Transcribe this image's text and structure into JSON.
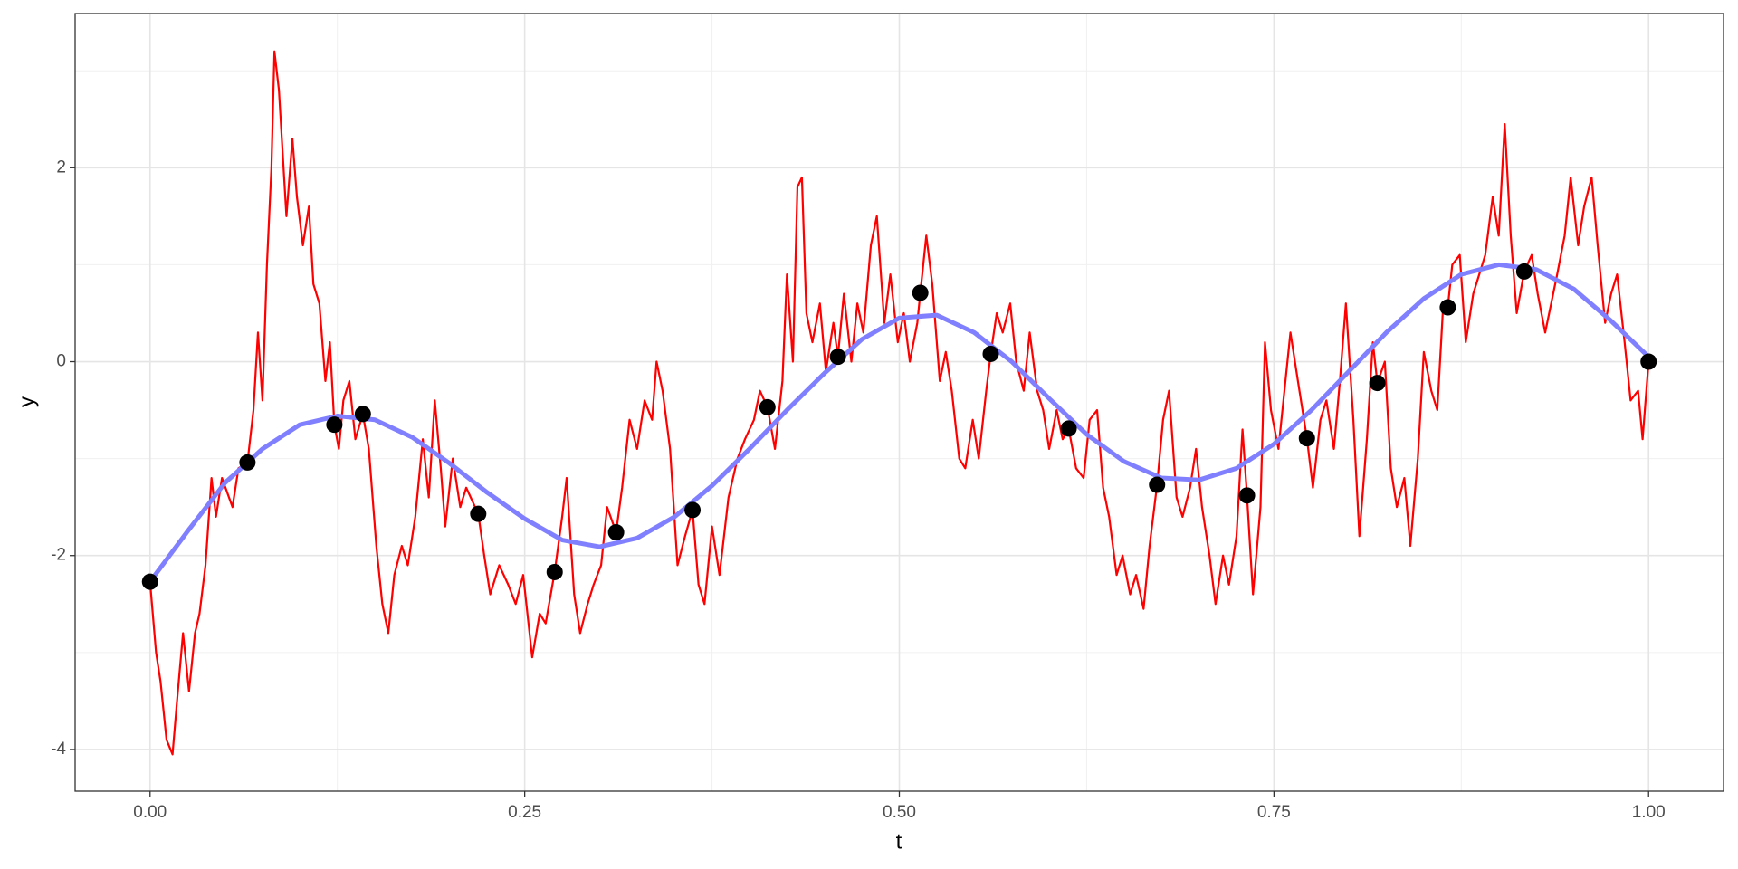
{
  "chart_data": {
    "type": "line",
    "x_label": "t",
    "y_label": "y",
    "xlim": [
      -0.05,
      1.05
    ],
    "ylim": [
      -4.43,
      3.59
    ],
    "xticks": [
      {
        "value": 0,
        "label": "0.00"
      },
      {
        "value": 0.25,
        "label": "0.25"
      },
      {
        "value": 0.5,
        "label": "0.50"
      },
      {
        "value": 0.75,
        "label": "0.75"
      },
      {
        "value": 1,
        "label": "1.00"
      }
    ],
    "yticks": [
      -4,
      -2,
      0,
      2
    ],
    "x_minor_grid": [
      0.125,
      0.375,
      0.625,
      0.875
    ],
    "y_minor_grid": [
      -3,
      -1,
      1,
      3
    ],
    "grid": true,
    "series": [
      {
        "type": "line",
        "color": "#ff0000",
        "width": 2.2,
        "x": [
          0,
          0.004,
          0.007,
          0.011,
          0.015,
          0.018,
          0.022,
          0.026,
          0.03,
          0.033,
          0.037,
          0.041,
          0.044,
          0.048,
          0.055,
          0.059,
          0.065,
          0.069,
          0.072,
          0.075,
          0.078,
          0.081,
          0.083,
          0.086,
          0.091,
          0.095,
          0.098,
          0.102,
          0.106,
          0.109,
          0.113,
          0.117,
          0.12,
          0.123,
          0.126,
          0.129,
          0.133,
          0.137,
          0.142,
          0.146,
          0.151,
          0.155,
          0.159,
          0.163,
          0.168,
          0.172,
          0.177,
          0.182,
          0.186,
          0.19,
          0.194,
          0.197,
          0.202,
          0.207,
          0.211,
          0.219,
          0.223,
          0.227,
          0.233,
          0.239,
          0.244,
          0.249,
          0.255,
          0.26,
          0.264,
          0.27,
          0.275,
          0.278,
          0.283,
          0.287,
          0.292,
          0.296,
          0.301,
          0.305,
          0.311,
          0.315,
          0.32,
          0.325,
          0.33,
          0.335,
          0.338,
          0.342,
          0.347,
          0.352,
          0.357,
          0.362,
          0.366,
          0.37,
          0.375,
          0.38,
          0.386,
          0.392,
          0.397,
          0.403,
          0.407,
          0.412,
          0.417,
          0.422,
          0.425,
          0.429,
          0.432,
          0.435,
          0.438,
          0.442,
          0.447,
          0.451,
          0.456,
          0.459,
          0.463,
          0.468,
          0.472,
          0.476,
          0.481,
          0.485,
          0.49,
          0.494,
          0.499,
          0.503,
          0.507,
          0.512,
          0.514,
          0.518,
          0.522,
          0.527,
          0.531,
          0.535,
          0.54,
          0.544,
          0.549,
          0.553,
          0.558,
          0.561,
          0.565,
          0.569,
          0.574,
          0.578,
          0.583,
          0.587,
          0.592,
          0.596,
          0.6,
          0.605,
          0.609,
          0.613,
          0.618,
          0.623,
          0.627,
          0.632,
          0.636,
          0.64,
          0.645,
          0.649,
          0.654,
          0.658,
          0.663,
          0.667,
          0.672,
          0.676,
          0.68,
          0.685,
          0.689,
          0.694,
          0.698,
          0.702,
          0.707,
          0.711,
          0.716,
          0.72,
          0.725,
          0.729,
          0.732,
          0.736,
          0.741,
          0.744,
          0.748,
          0.753,
          0.757,
          0.761,
          0.766,
          0.772,
          0.776,
          0.781,
          0.785,
          0.79,
          0.794,
          0.798,
          0.803,
          0.807,
          0.812,
          0.816,
          0.819,
          0.824,
          0.828,
          0.832,
          0.837,
          0.841,
          0.846,
          0.85,
          0.855,
          0.859,
          0.863,
          0.866,
          0.869,
          0.874,
          0.878,
          0.883,
          0.887,
          0.891,
          0.896,
          0.9,
          0.904,
          0.908,
          0.912,
          0.917,
          0.922,
          0.926,
          0.931,
          0.935,
          0.939,
          0.944,
          0.948,
          0.953,
          0.957,
          0.962,
          0.966,
          0.971,
          0.975,
          0.979,
          0.984,
          0.988,
          0.993,
          0.996,
          1.0
        ],
        "values": [
          -2.27,
          -3.0,
          -3.3,
          -3.9,
          -4.05,
          -3.5,
          -2.8,
          -3.4,
          -2.8,
          -2.6,
          -2.1,
          -1.2,
          -1.6,
          -1.2,
          -1.5,
          -1.1,
          -1.04,
          -0.5,
          0.3,
          -0.4,
          1.0,
          2.0,
          3.2,
          2.8,
          1.5,
          2.3,
          1.7,
          1.2,
          1.6,
          0.8,
          0.6,
          -0.2,
          0.2,
          -0.65,
          -0.9,
          -0.4,
          -0.2,
          -0.8,
          -0.54,
          -0.9,
          -1.9,
          -2.5,
          -2.8,
          -2.2,
          -1.9,
          -2.1,
          -1.6,
          -0.8,
          -1.4,
          -0.4,
          -1.1,
          -1.7,
          -1.0,
          -1.5,
          -1.3,
          -1.57,
          -2.0,
          -2.4,
          -2.1,
          -2.3,
          -2.5,
          -2.2,
          -3.05,
          -2.6,
          -2.7,
          -2.17,
          -1.6,
          -1.2,
          -2.4,
          -2.8,
          -2.5,
          -2.3,
          -2.1,
          -1.5,
          -1.76,
          -1.3,
          -0.6,
          -0.9,
          -0.4,
          -0.6,
          0.0,
          -0.3,
          -0.9,
          -2.1,
          -1.8,
          -1.53,
          -2.3,
          -2.5,
          -1.7,
          -2.2,
          -1.4,
          -1.0,
          -0.8,
          -0.6,
          -0.3,
          -0.47,
          -0.9,
          -0.2,
          0.9,
          0.0,
          1.8,
          1.9,
          0.5,
          0.2,
          0.6,
          -0.1,
          0.4,
          0.05,
          0.7,
          0.0,
          0.6,
          0.3,
          1.2,
          1.5,
          0.4,
          0.9,
          0.2,
          0.5,
          0.0,
          0.4,
          0.71,
          1.3,
          0.8,
          -0.2,
          0.1,
          -0.3,
          -1.0,
          -1.1,
          -0.6,
          -1.0,
          -0.3,
          0.08,
          0.5,
          0.3,
          0.6,
          0.0,
          -0.3,
          0.3,
          -0.3,
          -0.5,
          -0.9,
          -0.5,
          -0.8,
          -0.69,
          -1.1,
          -1.2,
          -0.6,
          -0.5,
          -1.3,
          -1.6,
          -2.2,
          -2.0,
          -2.4,
          -2.2,
          -2.55,
          -1.9,
          -1.27,
          -0.6,
          -0.3,
          -1.4,
          -1.6,
          -1.3,
          -0.9,
          -1.5,
          -2.0,
          -2.5,
          -2.0,
          -2.3,
          -1.8,
          -0.7,
          -1.38,
          -2.4,
          -1.5,
          0.2,
          -0.5,
          -0.9,
          -0.3,
          0.3,
          -0.2,
          -0.79,
          -1.3,
          -0.6,
          -0.4,
          -0.9,
          -0.2,
          0.6,
          -0.6,
          -1.8,
          -0.8,
          0.2,
          -0.22,
          0.0,
          -1.1,
          -1.5,
          -1.2,
          -1.9,
          -1.0,
          0.1,
          -0.3,
          -0.5,
          0.6,
          0.56,
          1.0,
          1.1,
          0.2,
          0.7,
          0.9,
          1.1,
          1.7,
          1.3,
          2.45,
          1.3,
          0.5,
          0.93,
          1.1,
          0.7,
          0.3,
          0.6,
          0.9,
          1.3,
          1.9,
          1.2,
          1.6,
          1.9,
          1.2,
          0.4,
          0.7,
          0.9,
          0.2,
          -0.4,
          -0.3,
          -0.8,
          0.0
        ]
      },
      {
        "type": "line",
        "color": "#8080ff",
        "width": 5,
        "x": [
          0,
          0.025,
          0.05,
          0.075,
          0.1,
          0.125,
          0.15,
          0.175,
          0.2,
          0.225,
          0.25,
          0.275,
          0.3,
          0.325,
          0.35,
          0.375,
          0.4,
          0.425,
          0.45,
          0.475,
          0.5,
          0.525,
          0.55,
          0.575,
          0.6,
          0.625,
          0.65,
          0.675,
          0.7,
          0.725,
          0.75,
          0.775,
          0.8,
          0.825,
          0.85,
          0.875,
          0.9,
          0.925,
          0.95,
          0.975,
          1.0
        ],
        "values": [
          -2.27,
          -1.75,
          -1.25,
          -0.9,
          -0.65,
          -0.56,
          -0.6,
          -0.78,
          -1.05,
          -1.35,
          -1.62,
          -1.84,
          -1.91,
          -1.82,
          -1.6,
          -1.28,
          -0.9,
          -0.5,
          -0.12,
          0.23,
          0.45,
          0.48,
          0.3,
          0.0,
          -0.38,
          -0.75,
          -1.03,
          -1.2,
          -1.22,
          -1.1,
          -0.85,
          -0.5,
          -0.1,
          0.3,
          0.65,
          0.9,
          1.0,
          0.95,
          0.75,
          0.42,
          0.05
        ]
      },
      {
        "type": "scatter",
        "color": "#000000",
        "size": 9,
        "x": [
          0,
          0.065,
          0.123,
          0.142,
          0.219,
          0.27,
          0.311,
          0.362,
          0.412,
          0.459,
          0.514,
          0.561,
          0.613,
          0.672,
          0.732,
          0.772,
          0.819,
          0.866,
          0.917,
          1.0
        ],
        "values": [
          -2.27,
          -1.04,
          -0.65,
          -0.54,
          -1.57,
          -2.17,
          -1.76,
          -1.53,
          -0.47,
          0.05,
          0.71,
          0.08,
          -0.69,
          -1.27,
          -1.38,
          -0.79,
          -0.22,
          0.56,
          0.93,
          0.0
        ]
      }
    ]
  }
}
